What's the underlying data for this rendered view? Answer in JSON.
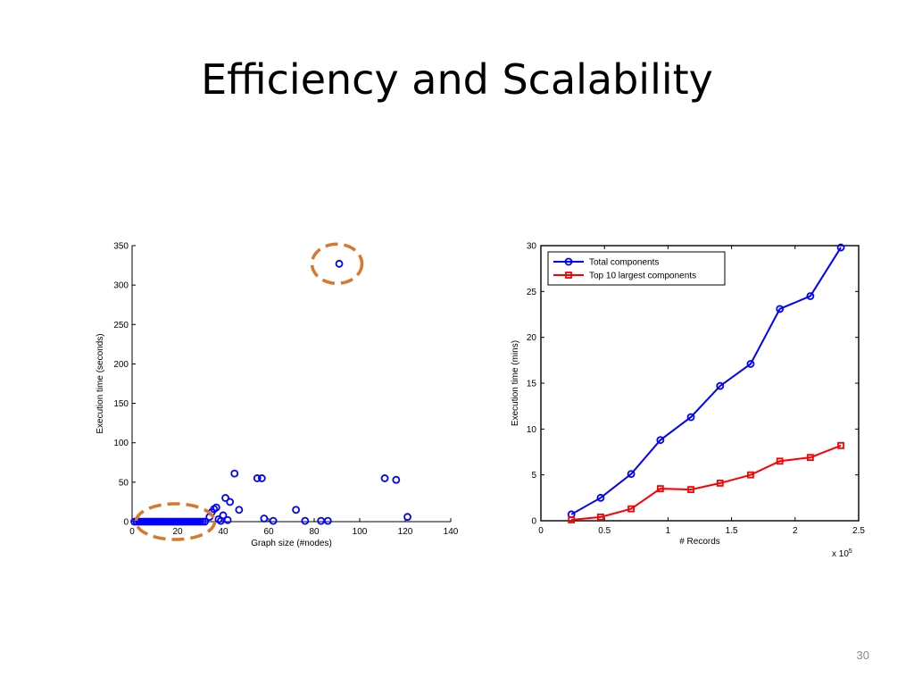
{
  "slide": {
    "title": "Efficiency and Scalability",
    "page_number": "30"
  },
  "chart_data": [
    {
      "type": "scatter",
      "xlabel": "Graph size (#nodes)",
      "ylabel": "Execution time (seconds)",
      "xlim": [
        0,
        140
      ],
      "ylim": [
        0,
        350
      ],
      "xticks": [
        0,
        20,
        40,
        60,
        80,
        100,
        120,
        140
      ],
      "yticks": [
        0,
        50,
        100,
        150,
        200,
        250,
        300,
        350
      ],
      "grid": false,
      "marker": "circle",
      "color": "#0000ff",
      "highlight_color": "#d9782d",
      "points": [
        [
          1,
          0
        ],
        [
          2,
          0
        ],
        [
          3,
          0
        ],
        [
          4,
          0
        ],
        [
          5,
          0
        ],
        [
          6,
          0
        ],
        [
          7,
          0
        ],
        [
          8,
          0
        ],
        [
          9,
          0
        ],
        [
          10,
          0
        ],
        [
          11,
          0
        ],
        [
          12,
          0
        ],
        [
          13,
          0
        ],
        [
          14,
          0
        ],
        [
          15,
          0
        ],
        [
          16,
          0
        ],
        [
          17,
          0
        ],
        [
          18,
          0
        ],
        [
          19,
          0
        ],
        [
          20,
          0
        ],
        [
          21,
          0
        ],
        [
          22,
          0
        ],
        [
          23,
          0
        ],
        [
          24,
          0
        ],
        [
          25,
          0
        ],
        [
          26,
          0
        ],
        [
          27,
          0
        ],
        [
          28,
          0
        ],
        [
          29,
          0
        ],
        [
          30,
          0
        ],
        [
          31,
          0
        ],
        [
          32,
          0
        ],
        [
          34,
          6
        ],
        [
          35,
          12
        ],
        [
          36,
          16
        ],
        [
          37,
          18
        ],
        [
          38,
          3
        ],
        [
          39,
          1
        ],
        [
          40,
          8
        ],
        [
          41,
          30
        ],
        [
          42,
          2
        ],
        [
          43,
          25
        ],
        [
          45,
          61
        ],
        [
          47,
          15
        ],
        [
          55,
          55
        ],
        [
          57,
          55
        ],
        [
          58,
          4
        ],
        [
          62,
          1
        ],
        [
          72,
          15
        ],
        [
          76,
          1
        ],
        [
          83,
          1
        ],
        [
          86,
          1
        ],
        [
          91,
          327
        ],
        [
          111,
          55
        ],
        [
          116,
          53
        ],
        [
          121,
          6
        ]
      ],
      "highlights": [
        {
          "label": "outlier",
          "cx": 90,
          "cy": 327
        },
        {
          "label": "cluster",
          "cx": 19,
          "cy": 0
        }
      ]
    },
    {
      "type": "line",
      "xlabel": "# Records",
      "ylabel": "Execution time (mins)",
      "xlim": [
        0,
        2.5
      ],
      "ylim": [
        0,
        30
      ],
      "xticks": [
        "0",
        "0.5",
        "1",
        "1.5",
        "2",
        "2.5"
      ],
      "xtick_values": [
        0,
        0.5,
        1,
        1.5,
        2,
        2.5
      ],
      "yticks": [
        0,
        5,
        10,
        15,
        20,
        25,
        30
      ],
      "x_multiplier_base": "x 10",
      "x_multiplier_exp": "5",
      "grid": false,
      "legend_position": "top-left",
      "x": [
        0.24,
        0.47,
        0.71,
        0.94,
        1.18,
        1.41,
        1.65,
        1.88,
        2.12,
        2.36
      ],
      "series": [
        {
          "name": "Total components",
          "color": "#0000ff",
          "marker": "circle",
          "values": [
            0.7,
            2.5,
            5.1,
            8.8,
            11.3,
            14.7,
            17.1,
            23.1,
            24.5,
            29.8
          ]
        },
        {
          "name": "Top 10 largest components",
          "color": "#ff0000",
          "marker": "square",
          "values": [
            0.1,
            0.4,
            1.3,
            3.5,
            3.4,
            4.1,
            5.0,
            6.5,
            6.9,
            8.2
          ]
        }
      ]
    }
  ]
}
